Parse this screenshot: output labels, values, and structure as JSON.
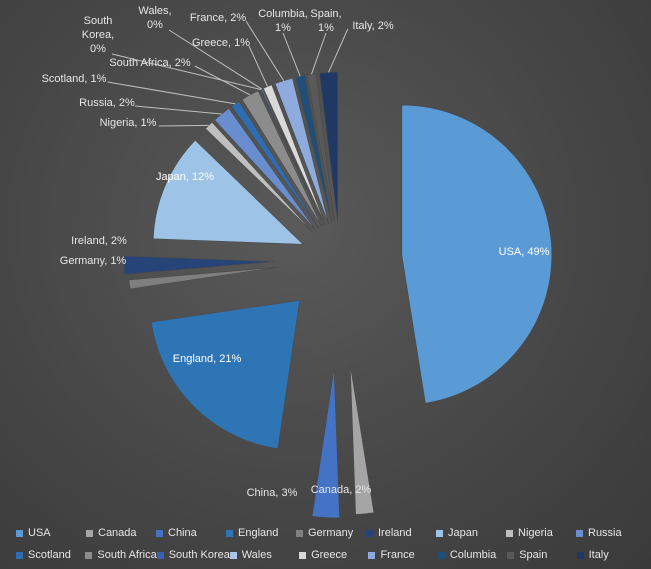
{
  "chart_data": {
    "type": "pie",
    "exploded": true,
    "title": "",
    "categories": [
      "USA",
      "Canada",
      "China",
      "England",
      "Germany",
      "Ireland",
      "Japan",
      "Nigeria",
      "Russia",
      "Scotland",
      "South Africa",
      "South Korea",
      "Wales",
      "Greece",
      "France",
      "Columbia",
      "Spain",
      "Italy"
    ],
    "values": [
      49,
      2,
      3,
      21,
      1,
      2,
      12,
      1,
      2,
      1,
      2,
      0,
      0,
      1,
      2,
      1,
      1,
      2
    ],
    "colors": [
      "#5b9bd5",
      "#a5a5a5",
      "#4472c4",
      "#2e75b6",
      "#7f7f7f",
      "#264478",
      "#9dc3e6",
      "#bfbfbf",
      "#698ed0",
      "#2f6db3",
      "#8c8c8c",
      "#3563b0",
      "#a9c5ea",
      "#d9d9d9",
      "#8faadc",
      "#1f4e79",
      "#595959",
      "#203864"
    ],
    "data_labels": [
      "USA, 49%",
      "Canada, 2%",
      "China, 3%",
      "England, 21%",
      "Germany, 1%",
      "Ireland, 2%",
      "Japan, 12%",
      "Nigeria, 1%",
      "Russia, 2%",
      "Scotland, 1%",
      "South Africa, 2%",
      "South Korea, 0%",
      "Wales, 0%",
      "Greece, 1%",
      "France, 2%",
      "Columbia, 1%",
      "Spain, 1%",
      "Italy, 2%"
    ],
    "legend_position": "bottom",
    "legend_rows": [
      [
        "USA",
        "Canada",
        "China",
        "England",
        "Germany",
        "Ireland",
        "Japan",
        "Nigeria",
        "Russia"
      ],
      [
        "Scotland",
        "South Africa",
        "South Korea",
        "Wales",
        "Greece",
        "France",
        "Columbia",
        "Spain",
        "Italy"
      ]
    ]
  }
}
